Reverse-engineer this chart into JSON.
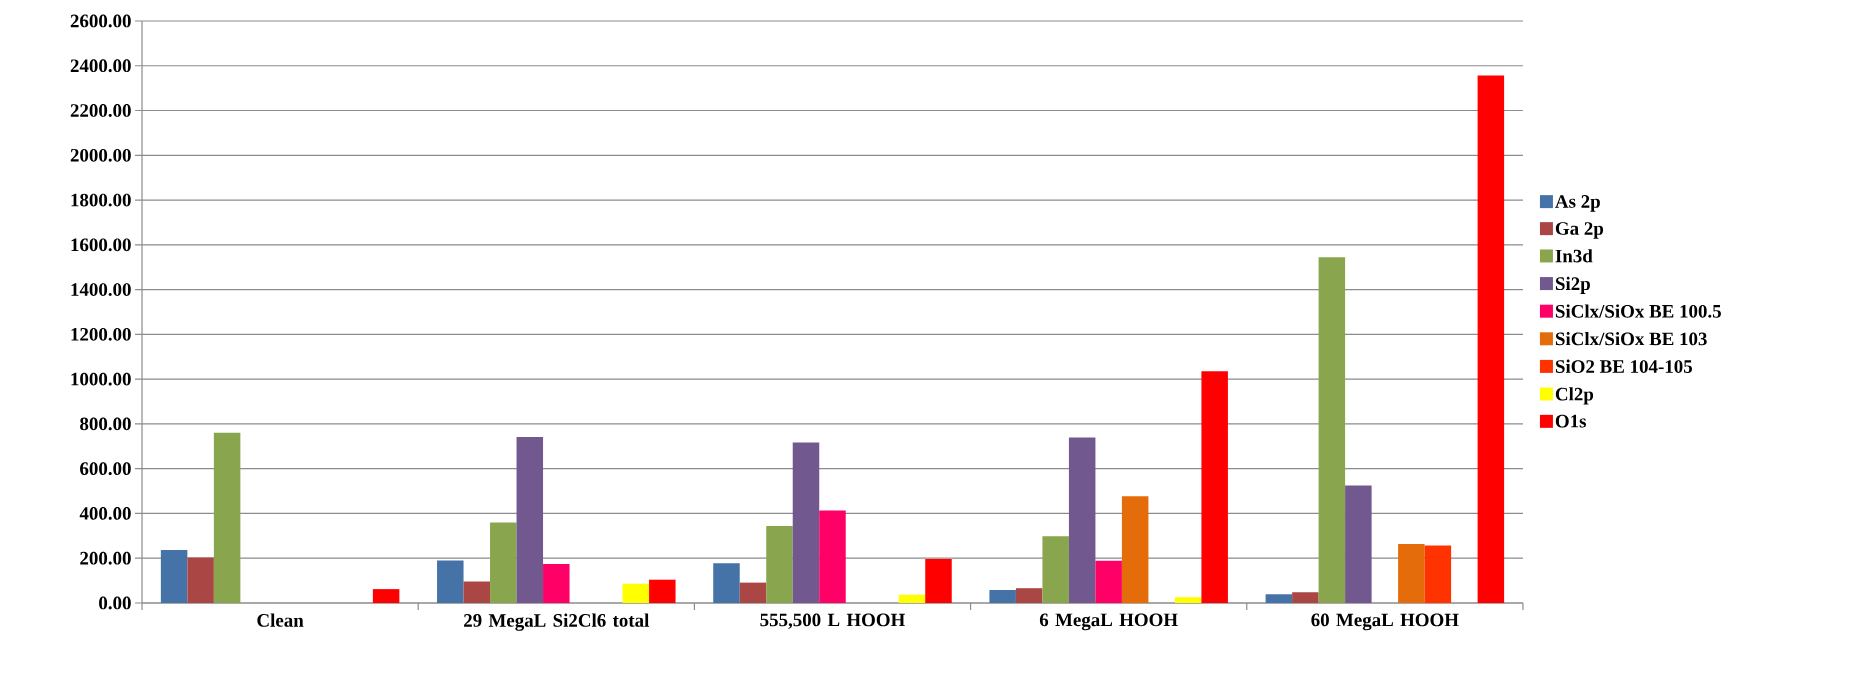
{
  "chart_data": {
    "type": "bar",
    "categories": [
      "Clean",
      "29 MegaL Si2Cl6 total",
      "555,500 L HOOH",
      "6 MegaL HOOH",
      "60 MegaL HOOH"
    ],
    "series": [
      {
        "name": "As 2p",
        "color": "#4572a7",
        "values": [
          237,
          190,
          178,
          58,
          39
        ]
      },
      {
        "name": "Ga 2p",
        "color": "#aa4643",
        "values": [
          203,
          96,
          91,
          66,
          48
        ]
      },
      {
        "name": "In3d",
        "color": "#89a54e",
        "values": [
          760,
          360,
          344,
          298,
          1544
        ]
      },
      {
        "name": "Si2p",
        "color": "#71588f",
        "values": [
          null,
          741,
          717,
          739,
          525
        ]
      },
      {
        "name": "SiClx/SiOx BE 100.5",
        "color": "#ff0066",
        "values": [
          null,
          174,
          413,
          189,
          null
        ]
      },
      {
        "name": "SiClx/SiOx BE 103",
        "color": "#e46c0a",
        "values": [
          null,
          null,
          null,
          477,
          263
        ]
      },
      {
        "name": "SiO2 BE 104-105",
        "color": "#ff3300",
        "values": [
          null,
          null,
          null,
          null,
          257
        ]
      },
      {
        "name": "Cl2p",
        "color": "#ffff00",
        "values": [
          null,
          86,
          37,
          26,
          null
        ]
      },
      {
        "name": "O1s",
        "color": "#ff0000",
        "values": [
          62,
          104,
          197,
          1035,
          2357
        ]
      }
    ],
    "ylim": [
      0,
      2600
    ],
    "yticks": [
      {
        "value": 0,
        "label": "0.00"
      },
      {
        "value": 200,
        "label": "200.00"
      },
      {
        "value": 400,
        "label": "400.00"
      },
      {
        "value": 600,
        "label": "600.00"
      },
      {
        "value": 800,
        "label": "800.00"
      },
      {
        "value": 1000,
        "label": "1000.00"
      },
      {
        "value": 1200,
        "label": "1200.00"
      },
      {
        "value": 1400,
        "label": "1400.00"
      },
      {
        "value": 1600,
        "label": "1600.00"
      },
      {
        "value": 1800,
        "label": "1800.00"
      },
      {
        "value": 2000,
        "label": "2000.00"
      },
      {
        "value": 2200,
        "label": "2200.00"
      },
      {
        "value": 2400,
        "label": "2400.00"
      },
      {
        "value": 2600,
        "label": "2600.00"
      }
    ],
    "grid": "y",
    "legend": "right"
  }
}
